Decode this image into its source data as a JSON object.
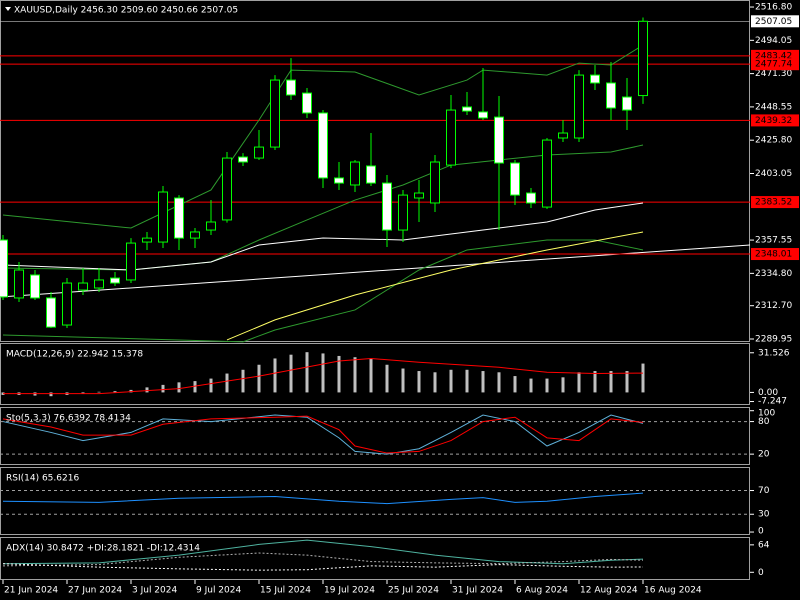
{
  "chart_data": [
    {
      "type": "candlestick",
      "title": "XAUUSD,Daily 2456.30 2509.60 2450.66 2507.05",
      "categories": [
        "21 Jun 2024",
        null,
        null,
        null,
        "27 Jun 2024",
        null,
        null,
        null,
        "3 Jul 2024",
        null,
        null,
        null,
        "9 Jul 2024",
        null,
        null,
        null,
        "15 Jul 2024",
        null,
        null,
        null,
        "19 Jul 2024",
        null,
        null,
        null,
        "25 Jul 2024",
        null,
        null,
        null,
        "31 Jul 2024",
        null,
        null,
        null,
        "6 Aug 2024",
        null,
        null,
        null,
        "12 Aug 2024",
        null,
        null,
        null,
        "16 Aug 2024"
      ],
      "open": [
        2357.6,
        2318.0,
        2333.7,
        2318.0,
        2299.5,
        2323.4,
        2324.8,
        2331.6,
        2330.3,
        2356.2,
        2356.2,
        2386.3,
        2358.9,
        2364.4,
        2371.3,
        2414.3,
        2413.6,
        2421.1,
        2466.9,
        2458.0,
        2444.4,
        2400.0,
        2395.2,
        2408.2,
        2396.5,
        2364.4,
        2386.3,
        2382.9,
        2408.8,
        2448.5,
        2445.1,
        2441.6,
        2410.2,
        2389.7,
        2380.1,
        2427.3,
        2427.3,
        2470.3,
        2464.9,
        2455.3,
        2456.3
      ],
      "high": [
        2361.0,
        2342.6,
        2337.1,
        2322.1,
        2331.6,
        2338.5,
        2338.5,
        2335.7,
        2358.9,
        2363.1,
        2394.5,
        2388.3,
        2365.8,
        2384.9,
        2417.7,
        2417.0,
        2432.8,
        2470.3,
        2481.9,
        2461.5,
        2446.4,
        2410.9,
        2412.3,
        2430.7,
        2402.0,
        2391.8,
        2398.6,
        2415.7,
        2456.7,
        2458.7,
        2475.1,
        2456.0,
        2412.3,
        2393.1,
        2427.3,
        2439.6,
        2473.7,
        2477.2,
        2479.2,
        2468.3,
        2509.6
      ],
      "low": [
        2316.6,
        2315.2,
        2316.6,
        2297.5,
        2297.5,
        2320.0,
        2322.1,
        2326.2,
        2328.2,
        2350.8,
        2352.1,
        2350.8,
        2352.1,
        2361.0,
        2369.5,
        2408.2,
        2412.3,
        2419.1,
        2453.3,
        2441.0,
        2393.1,
        2391.8,
        2390.4,
        2394.5,
        2352.8,
        2356.2,
        2369.9,
        2376.7,
        2406.8,
        2443.0,
        2439.6,
        2364.4,
        2381.5,
        2379.5,
        2378.8,
        2424.6,
        2424.6,
        2460.1,
        2439.6,
        2432.8,
        2450.66
      ],
      "close": [
        2318.7,
        2337.1,
        2318.0,
        2298.1,
        2328.2,
        2328.2,
        2330.3,
        2328.2,
        2355.5,
        2358.9,
        2390.4,
        2358.9,
        2363.1,
        2369.9,
        2413.6,
        2410.9,
        2421.1,
        2466.9,
        2456.7,
        2444.4,
        2400.0,
        2396.5,
        2410.9,
        2396.5,
        2364.4,
        2388.3,
        2389.7,
        2410.9,
        2446.4,
        2445.7,
        2441.0,
        2410.2,
        2388.3,
        2382.9,
        2425.9,
        2430.7,
        2470.3,
        2464.9,
        2447.8,
        2446.4,
        2507.05
      ],
      "up_color": "#00ff00",
      "down_color": "#ffffff",
      "ylim": [
        2287.9,
        2521.6
      ],
      "yticks": [
        {
          "value": 2516.8,
          "label": "2516.80"
        },
        {
          "value": 2494.05,
          "label": "2494.05"
        },
        {
          "value": 2471.3,
          "label": "2471.30"
        },
        {
          "value": 2448.55,
          "label": "2448.55"
        },
        {
          "value": 2425.8,
          "label": "2425.80"
        },
        {
          "value": 2403.05,
          "label": "2403.05"
        },
        {
          "value": 2357.55,
          "label": "2357.55"
        },
        {
          "value": 2334.8,
          "label": "2334.80"
        },
        {
          "value": 2312.7,
          "label": "2312.70"
        },
        {
          "value": 2289.95,
          "label": "2289.95"
        }
      ],
      "current_price": {
        "value": 2507.05,
        "label": "2507.05",
        "color": "#c0c0c0"
      },
      "levels": [
        {
          "value": 2483.42,
          "label": "2483.42",
          "color": "#ff0000"
        },
        {
          "value": 2477.74,
          "label": "2477.74",
          "color": "#ff0000"
        },
        {
          "value": 2439.32,
          "label": "2439.32",
          "color": "#ff0000"
        },
        {
          "value": 2383.52,
          "label": "2383.52",
          "color": "#ff0000"
        },
        {
          "value": 2348.01,
          "label": "2348.01",
          "color": "#ff0000"
        }
      ],
      "series": [
        {
          "color": "#2e9a2e",
          "x": [
            0,
            8,
            13,
            16,
            18,
            22,
            26,
            29,
            30,
            34,
            36,
            38,
            40
          ],
          "values": [
            2374.7,
            2365.8,
            2391.8,
            2439.6,
            2473.7,
            2472.4,
            2456.7,
            2466.9,
            2473.7,
            2470.3,
            2478.5,
            2477.2,
            2490.8
          ]
        },
        {
          "color": "#2e9a2e",
          "x": [
            0,
            8,
            13,
            16,
            19,
            22,
            25,
            28,
            31,
            34,
            38,
            40
          ],
          "values": [
            2338.5,
            2337.1,
            2342.6,
            2357.6,
            2371.3,
            2384.9,
            2395.2,
            2408.8,
            2412.3,
            2415.7,
            2417.7,
            2422.5
          ]
        },
        {
          "color": "#2e9a2e",
          "x": [
            0,
            15,
            17,
            22,
            26,
            29,
            34,
            37,
            40
          ],
          "values": [
            2292.7,
            2288.0,
            2296.1,
            2309.8,
            2337.1,
            2350.8,
            2357.6,
            2357.6,
            2350.8
          ]
        },
        {
          "color": "#ffffff",
          "x": [
            0,
            8,
            13,
            16,
            20,
            25,
            30,
            34,
            37,
            40
          ],
          "values": [
            2340.5,
            2337.1,
            2342.6,
            2354.2,
            2359.0,
            2357.6,
            2364.4,
            2369.9,
            2378.1,
            2382.9
          ]
        },
        {
          "color": "#ffff66",
          "x": [
            14,
            17,
            22,
            28,
            34,
            40
          ],
          "values": [
            2289.3,
            2303.0,
            2320.0,
            2337.1,
            2350.8,
            2363.1
          ]
        }
      ]
    },
    {
      "type": "macd",
      "title": "MACD(12,26,9) 22.942 15.378",
      "values": [
        -2,
        -2,
        -2.5,
        -3,
        -2,
        -1,
        0.5,
        1,
        2,
        4,
        6,
        8,
        9,
        11,
        15,
        18,
        22,
        27,
        30,
        32,
        31,
        29,
        28,
        27,
        22,
        19,
        17,
        16,
        18,
        18,
        17,
        16,
        13,
        11,
        11,
        12,
        16,
        17,
        17,
        17,
        22.942
      ],
      "color": "#c0c0c0",
      "ylim": [
        -10,
        38.5
      ],
      "yticks": [
        31.526,
        {
          "value": 0,
          "label": "0.00"
        },
        -7.247
      ],
      "series": [
        {
          "color": "#ff0000",
          "x": [
            0,
            6,
            11,
            16,
            21,
            23,
            26,
            31,
            34,
            37,
            40
          ],
          "values": [
            -1,
            -1,
            3,
            13,
            25,
            27,
            24,
            20,
            16,
            15,
            15.378
          ]
        }
      ]
    },
    {
      "type": "line",
      "title": "Sto(5,3,3) 76.6392 78.4134",
      "ylim": [
        0,
        105
      ],
      "yticks": [
        100,
        80,
        20
      ],
      "levels": [
        80,
        20
      ],
      "series": [
        {
          "color": "#5fb0d8",
          "x": [
            0,
            3,
            5,
            8,
            10,
            13,
            17,
            19,
            21,
            22,
            24,
            26,
            28,
            30,
            32,
            34,
            36,
            38,
            40
          ],
          "values": [
            80,
            60,
            45,
            60,
            85,
            80,
            92,
            88,
            50,
            25,
            20,
            30,
            60,
            92,
            80,
            35,
            60,
            92,
            76.6392
          ]
        },
        {
          "color": "#ff0000",
          "x": [
            0,
            3,
            5,
            8,
            10,
            13,
            17,
            19,
            21,
            22,
            24,
            26,
            28,
            30,
            32,
            34,
            36,
            38,
            40
          ],
          "values": [
            85,
            70,
            55,
            55,
            75,
            85,
            88,
            90,
            65,
            35,
            22,
            25,
            45,
            80,
            88,
            50,
            45,
            85,
            78.4134
          ]
        }
      ]
    },
    {
      "type": "line",
      "title": "RSI(14) 65.6216",
      "ylim": [
        -5,
        108
      ],
      "yticks": [
        70,
        30,
        0
      ],
      "levels": [
        70,
        30
      ],
      "series": [
        {
          "color": "#1e90ff",
          "x": [
            0,
            6,
            11,
            17,
            21,
            24,
            28,
            30,
            32,
            34,
            37,
            40
          ],
          "values": [
            52,
            50,
            57,
            60,
            52,
            48,
            55,
            58,
            50,
            52,
            60,
            65.6216
          ]
        }
      ]
    },
    {
      "type": "line",
      "title": "ADX(14) 30.8472 +DI:28.1821 -DI:12.4314",
      "ylim": [
        -18,
        80
      ],
      "yticks": [
        64,
        0
      ],
      "series": [
        {
          "color": "#4fb3a0",
          "x": [
            0,
            6,
            11,
            16,
            19,
            23,
            27,
            31,
            35,
            38,
            40
          ],
          "values": [
            20,
            22,
            40,
            65,
            75,
            60,
            40,
            25,
            20,
            28,
            30.8472
          ]
        },
        {
          "color": "#b0b0b0",
          "dash": true,
          "x": [
            0,
            6,
            11,
            16,
            19,
            23,
            27,
            31,
            35,
            38,
            40
          ],
          "values": [
            15,
            18,
            35,
            45,
            40,
            25,
            22,
            20,
            25,
            30,
            28.1821
          ]
        },
        {
          "color": "#ffffff",
          "dash": true,
          "x": [
            0,
            6,
            11,
            16,
            19,
            23,
            27,
            31,
            35,
            38,
            40
          ],
          "values": [
            20,
            12,
            8,
            5,
            6,
            15,
            12,
            18,
            14,
            12,
            12.4314
          ]
        }
      ]
    }
  ]
}
